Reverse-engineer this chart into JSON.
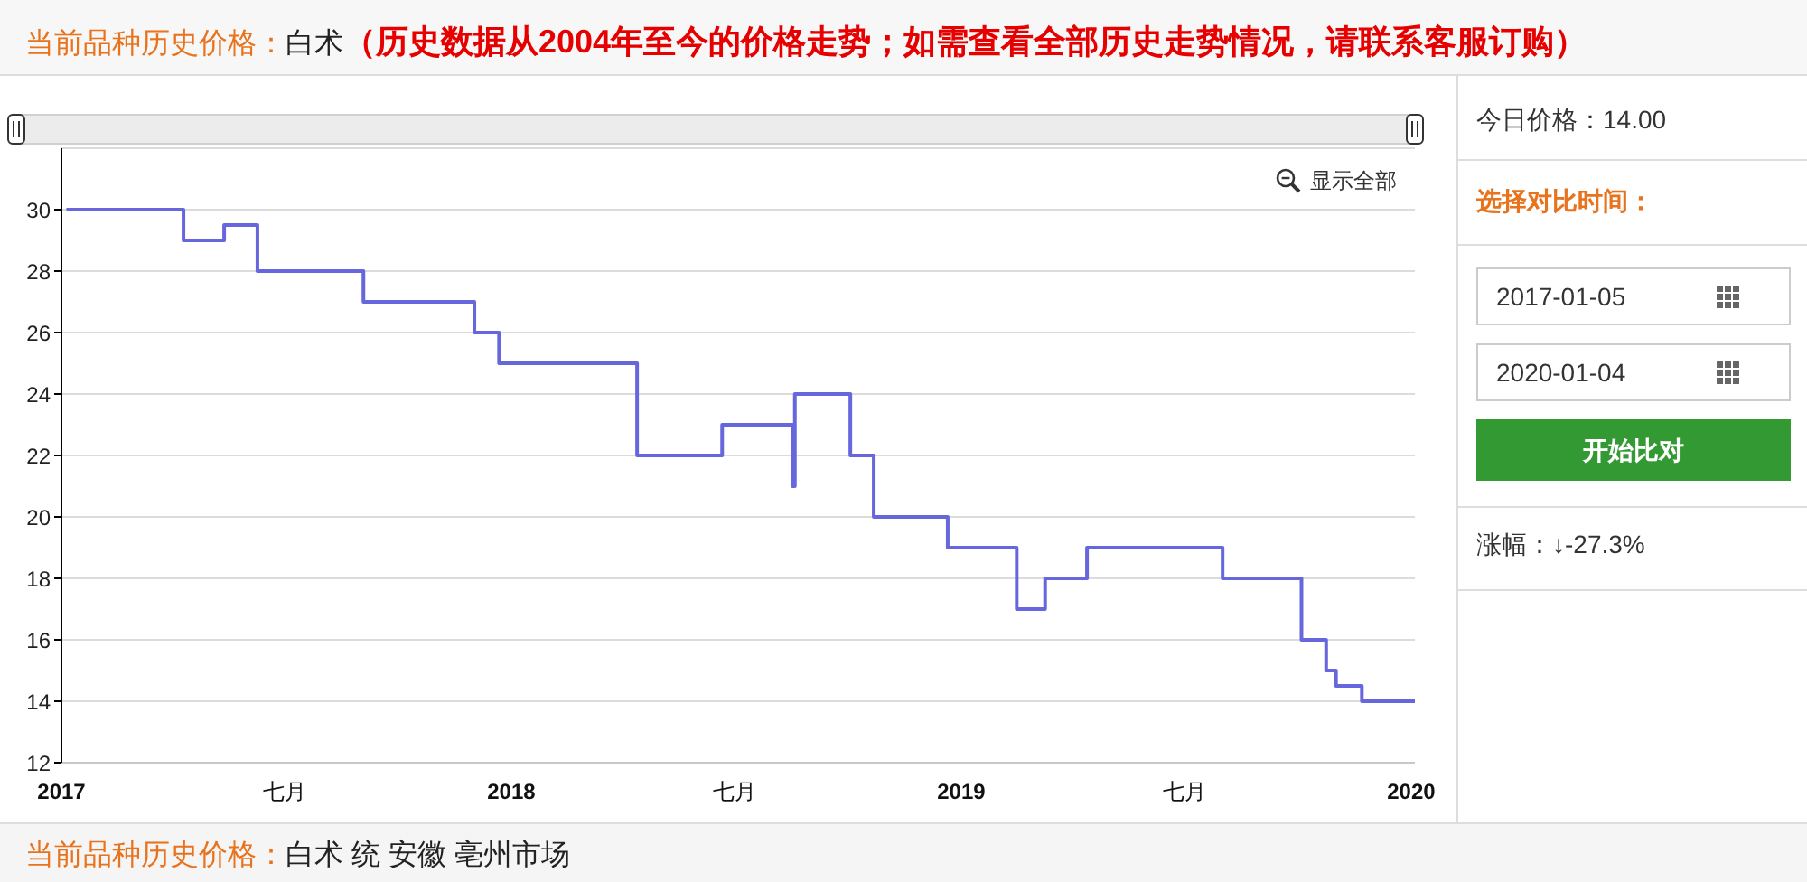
{
  "chart_data": {
    "type": "step",
    "title": "当前品种历史价格：",
    "subtitle": "白术",
    "annotations": [
      "（历史数据从2004年至今的价格走势；如需查看全部历史走势情况，请联系客服订购）",
      "显示全部",
      "今日价格：14.00",
      "选择对比时间：",
      "2017-01-05",
      "2020-01-04",
      "开始比对",
      "涨幅：↓-27.3%",
      "当前品种历史价格：",
      "白术 统 安徽 亳州市场"
    ],
    "x": [
      "2017-01-05",
      "2017-04-10",
      "2017-05-13",
      "2017-06-09",
      "2017-09-03",
      "2017-12-02",
      "2017-12-22",
      "2018-04-13",
      "2018-06-21",
      "2018-08-17",
      "2018-08-19",
      "2018-10-03",
      "2018-10-22",
      "2018-12-21",
      "2019-02-15",
      "2019-03-10",
      "2019-04-13",
      "2019-08-01",
      "2019-10-04",
      "2019-10-24",
      "2019-11-01",
      "2019-11-22",
      "2020-01-04"
    ],
    "values": [
      30,
      29,
      29.5,
      28,
      27,
      26,
      25,
      22,
      23,
      21,
      24,
      22,
      20,
      19,
      17,
      18,
      19,
      18,
      16,
      15,
      14.5,
      14,
      14
    ],
    "color": "#6666dd",
    "xlim": [
      "2017-01-01",
      "2020-01-04"
    ],
    "xticks": [
      {
        "value": "2017-01-01",
        "label": "2017"
      },
      {
        "value": "2017-07-01",
        "label": "七月"
      },
      {
        "value": "2018-01-01",
        "label": "2018"
      },
      {
        "value": "2018-07-01",
        "label": "七月"
      },
      {
        "value": "2019-01-01",
        "label": "2019"
      },
      {
        "value": "2019-07-01",
        "label": "七月"
      },
      {
        "value": "2020-01-01",
        "label": "2020"
      }
    ],
    "ylim": [
      12,
      32
    ],
    "yticks": [
      12,
      14,
      16,
      18,
      20,
      22,
      24,
      26,
      28,
      30
    ],
    "grid": "y"
  }
}
